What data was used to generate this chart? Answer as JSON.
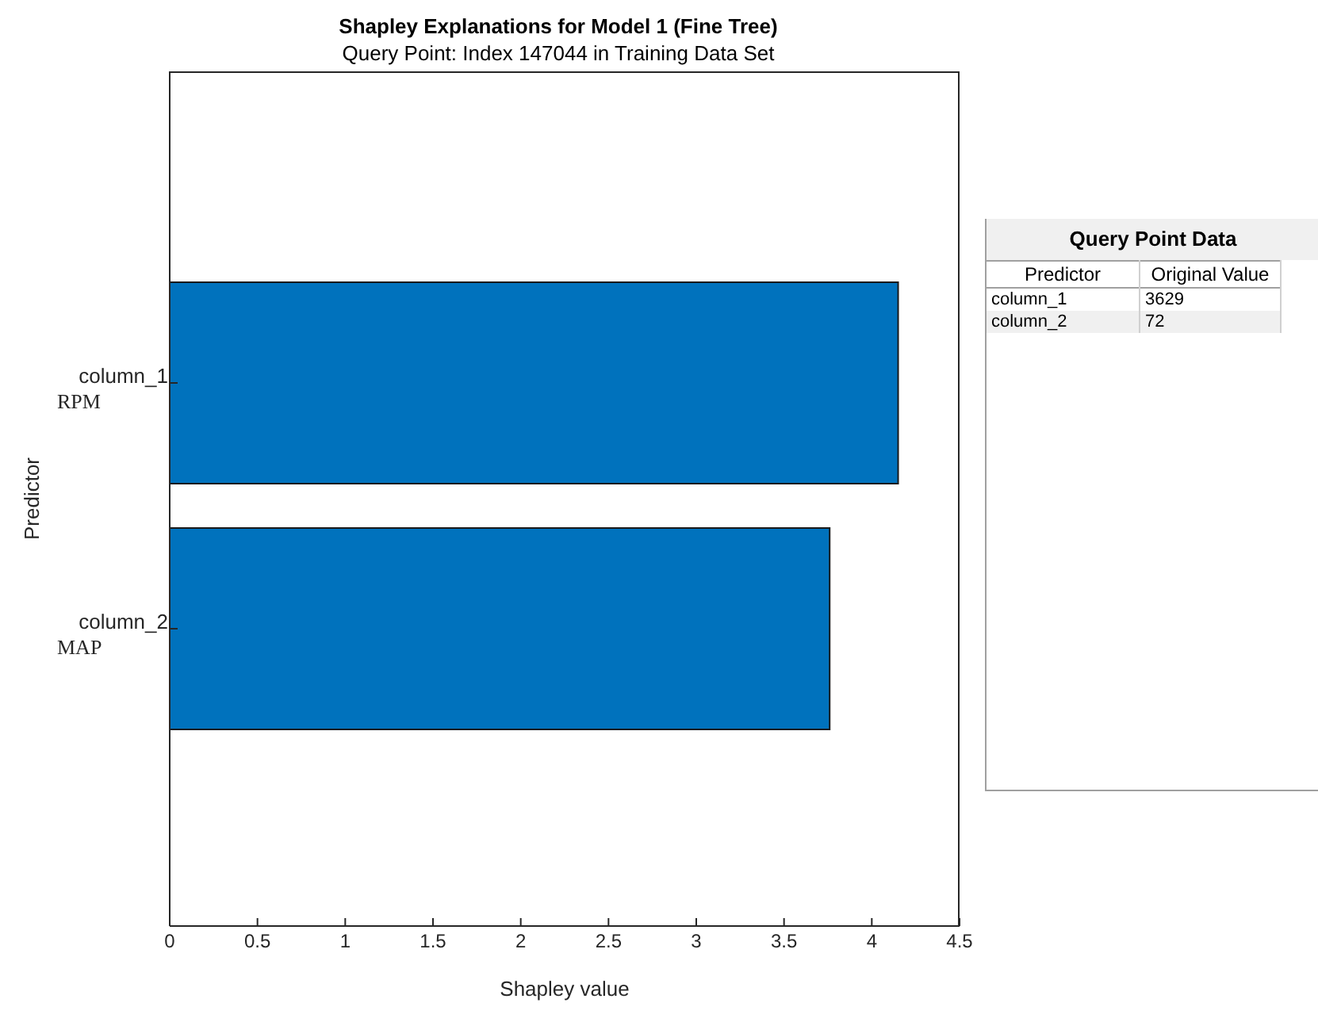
{
  "chart_data": [
    {
      "type": "bar",
      "orientation": "horizontal",
      "title": "Shapley Explanations for Model 1 (Fine Tree)",
      "subtitle": "Query Point: Index 147044 in Training Data Set",
      "xlabel": "Shapley value",
      "ylabel": "Predictor",
      "categories": [
        "column_1",
        "column_2"
      ],
      "annotations": [
        "RPM",
        "MAP"
      ],
      "values": [
        4.15,
        3.76
      ],
      "color": "#0072bd",
      "xlim": [
        0,
        4.5
      ],
      "xticks": [
        0,
        0.5,
        1,
        1.5,
        2,
        2.5,
        3,
        3.5,
        4,
        4.5
      ],
      "grid": false,
      "legend": false
    },
    {
      "type": "other",
      "title": "Query Point Data",
      "xlabel": "Predictor",
      "ylabel": "Original Value",
      "categories": [
        "column_1",
        "column_2"
      ],
      "values": [
        3629,
        72
      ],
      "data_labels": true
    }
  ]
}
